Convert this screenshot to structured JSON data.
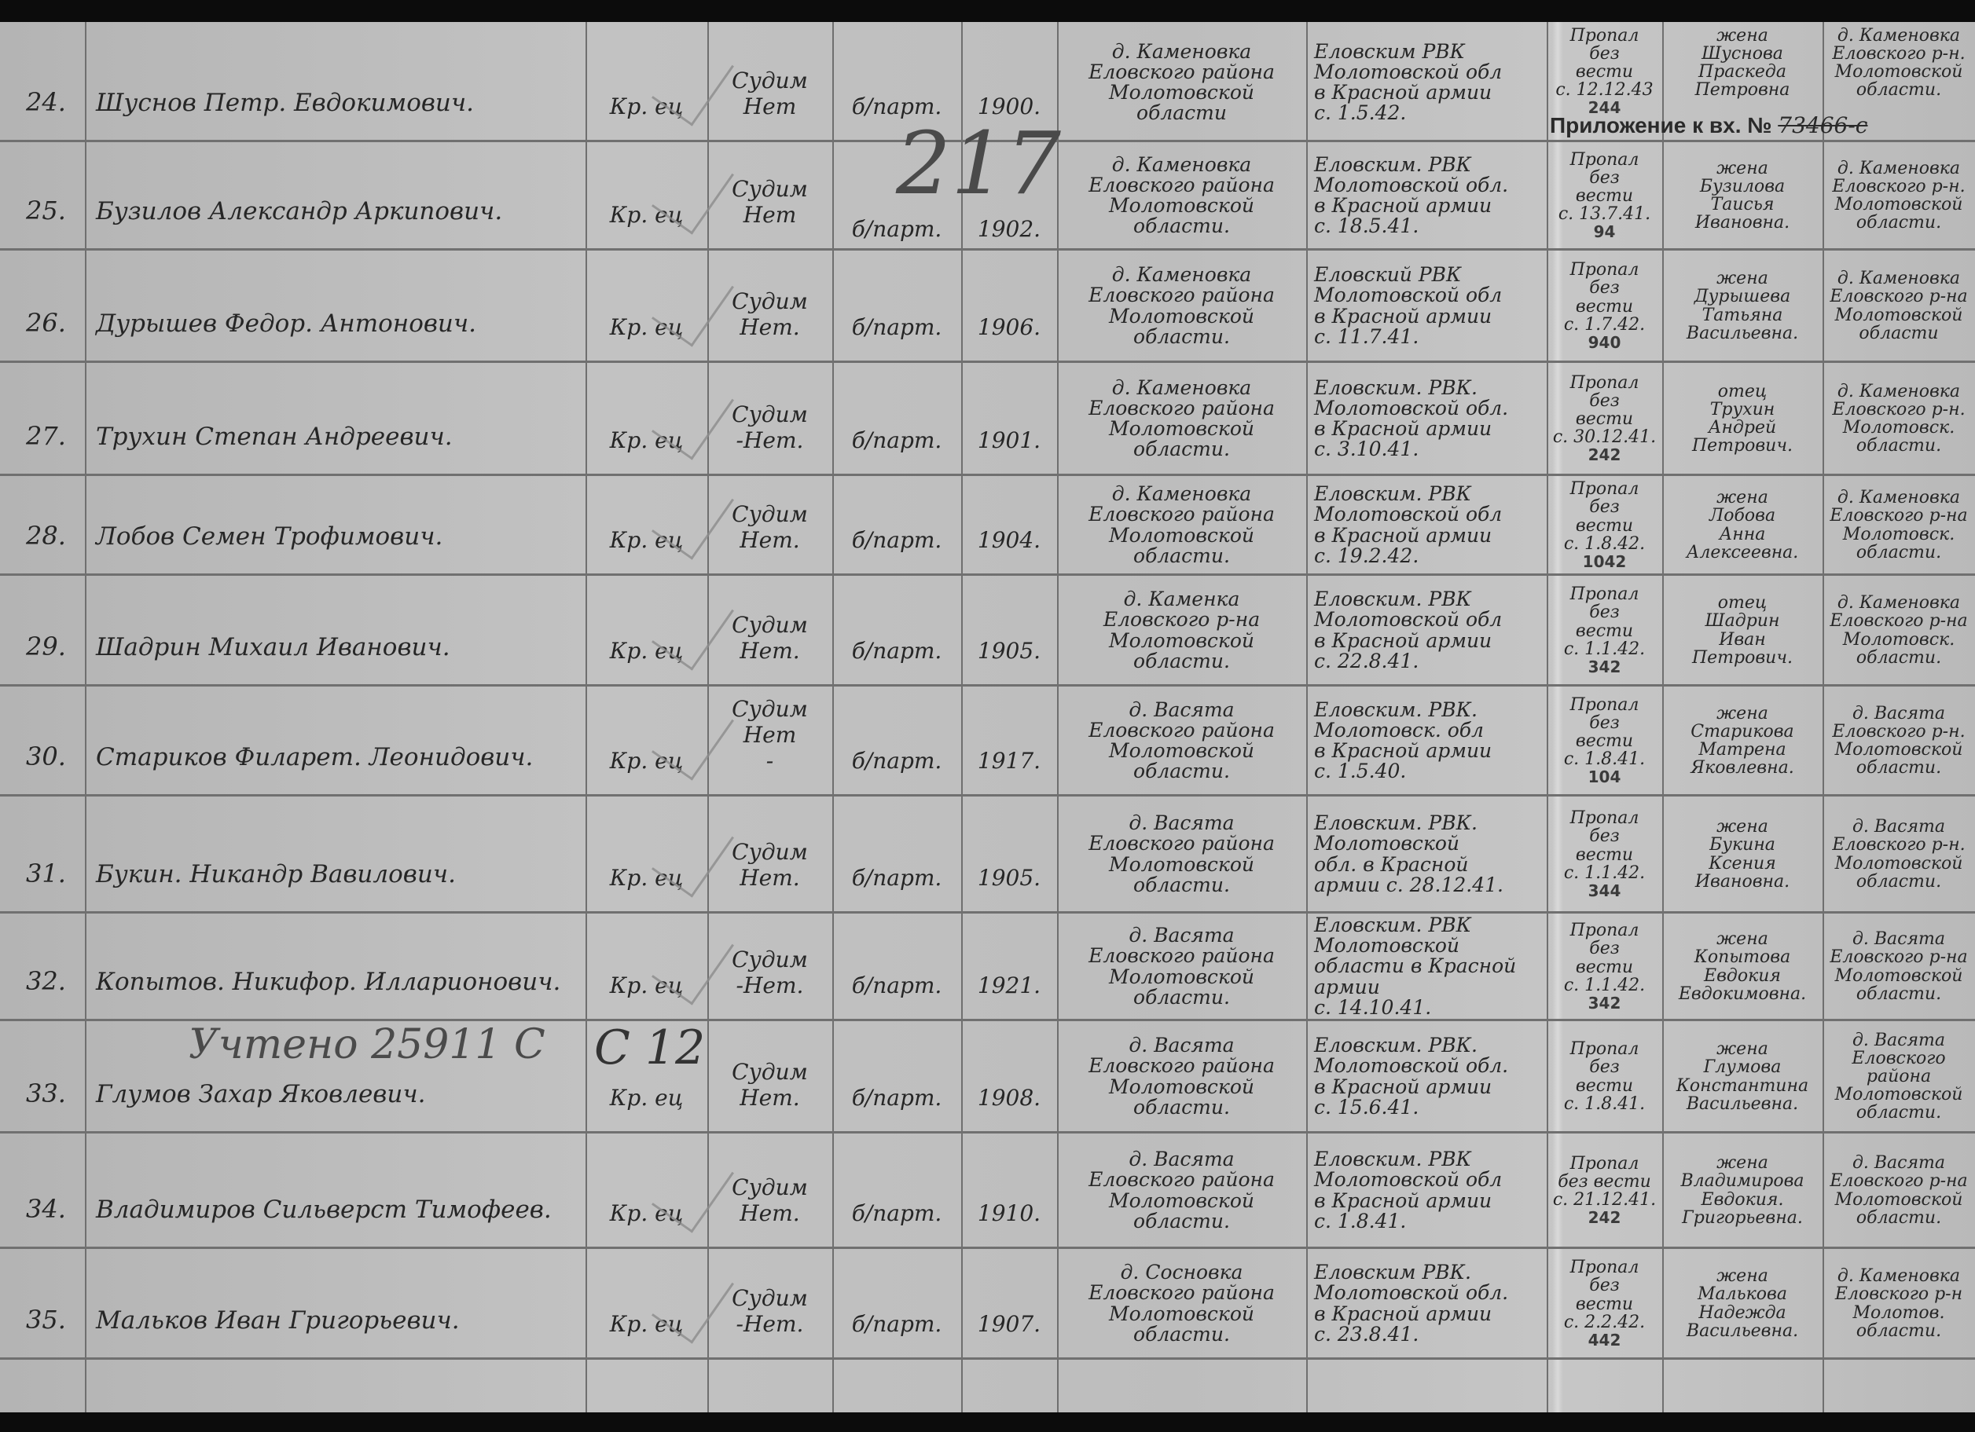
{
  "stamp": {
    "text": "Приложение к вх. №",
    "number": "73466-с"
  },
  "annotations": {
    "pencil_number": "217",
    "accounted_note": "Учтено 25911 С",
    "circled_mark": "С 12"
  },
  "rows": [
    {
      "num": "24.",
      "name": "Шуснов Петр. Евдокимович.",
      "social": "Кр. ец",
      "convicted": "Судим\nНет",
      "party": "б/парт.",
      "year": "1900.",
      "birthplace": "д. Каменовка\nЕловского района\nМолотовской\nобласти",
      "drafted": "Еловским РВК\nМолотовской обл\nв Красной армии\nс. 1.5.42.",
      "fate": "Пропал\nбез\nвести\nс. 12.12.43",
      "code": "244",
      "relative": "жена\nШуснова\nПраскеда\nПетровна",
      "relative_address": "д. Каменовка\nЕловского р-н.\nМолотовской\nобласти."
    },
    {
      "num": "25.",
      "name": "Бузилов Александр Аркипович.",
      "social": "Кр. ец",
      "convicted": "Судим\nНет",
      "party": "б/парт.",
      "year": "1902.",
      "birthplace": "д. Каменовка\nЕловского района\nМолотовской\nобласти.",
      "drafted": "Еловским. РВК\nМолотовской обл.\nв Красной армии\nс. 18.5.41.",
      "fate": "Пропал\nбез\nвести\nс. 13.7.41.",
      "code": "94",
      "relative": "жена\nБузилова\nТаисья\nИвановна.",
      "relative_address": "д. Каменовка\nЕловского р-н.\nМолотовской\nобласти."
    },
    {
      "num": "26.",
      "name": "Дурышев Федор. Антонович.",
      "social": "Кр. ец",
      "convicted": "Судим\nНет.",
      "party": "б/парт.",
      "year": "1906.",
      "birthplace": "д. Каменовка\nЕловского района\nМолотовской\nобласти.",
      "drafted": "Еловский РВК\nМолотовской обл\nв Красной армии\nс. 11.7.41.",
      "fate": "Пропал\nбез\nвести\nс. 1.7.42.",
      "code": "940",
      "relative": "жена\nДурышева\nТатьяна\nВасильевна.",
      "relative_address": "д. Каменовка\nЕловского р-на\nМолотовской\nобласти"
    },
    {
      "num": "27.",
      "name": "Трухин Степан Андреевич.",
      "social": "Кр. ец",
      "convicted": "Судим\n-Нет.",
      "party": "б/парт.",
      "year": "1901.",
      "birthplace": "д. Каменовка\nЕловского района\nМолотовской\nобласти.",
      "drafted": "Еловским. РВК.\nМолотовской обл.\nв Красной армии\nс. 3.10.41.",
      "fate": "Пропал\nбез\nвести\nс. 30.12.41.",
      "code": "242",
      "relative": "отец\nТрухин\nАндрей\nПетрович.",
      "relative_address": "д. Каменовка\nЕловского р-н.\nМолотовск.\nобласти."
    },
    {
      "num": "28.",
      "name": "Лобов Семен Трофимович.",
      "social": "Кр. ец",
      "convicted": "Судим\nНет.",
      "party": "б/парт.",
      "year": "1904.",
      "birthplace": "д. Каменовка\nЕловского района\nМолотовской\nобласти.",
      "drafted": "Еловским. РВК\nМолотовской обл\nв Красной армии\nс. 19.2.42.",
      "fate": "Пропал\nбез\nвести\nс. 1.8.42.",
      "code": "1042",
      "relative": "жена\nЛобова\nАнна\nАлексеевна.",
      "relative_address": "д. Каменовка\nЕловского р-на\nМолотовск.\nобласти."
    },
    {
      "num": "29.",
      "name": "Шадрин Михаил Иванович.",
      "social": "Кр. ец",
      "convicted": "Судим\nНет.",
      "party": "б/парт.",
      "year": "1905.",
      "birthplace": "д. Каменка\nЕловского р-на\nМолотовской\nобласти.",
      "drafted": "Еловским. РВК\nМолотовской обл\nв Красной армии\nс. 22.8.41.",
      "fate": "Пропал\nбез\nвести\nс. 1.1.42.",
      "code": "342",
      "relative": "отец\nШадрин\nИван\nПетрович.",
      "relative_address": "д. Каменовка\nЕловского р-на\nМолотовск.\nобласти."
    },
    {
      "num": "30.",
      "name": "Стариков Филарет. Леонидович.",
      "social": "Кр. ец",
      "convicted": "Судим\nНет\n-",
      "party": "б/парт.",
      "year": "1917.",
      "birthplace": "д. Васята\nЕловского района\nМолотовской\nобласти.",
      "drafted": "Еловским. РВК.\nМолотовск. обл\nв Красной армии\nс. 1.5.40.",
      "fate": "Пропал\nбез\nвести\nс. 1.8.41.",
      "code": "104",
      "relative": "жена\nСтарикова\nМатрена\nЯковлевна.",
      "relative_address": "д. Васята\nЕловского р-н.\nМолотовской\nобласти."
    },
    {
      "num": "31.",
      "name": "Букин. Никандр Вавилович.",
      "social": "Кр. ец",
      "convicted": "Судим\nНет.",
      "party": "б/парт.",
      "year": "1905.",
      "birthplace": "д. Васята\nЕловского района\nМолотовской\nобласти.",
      "drafted": "Еловским. РВК.\nМолотовской\nобл. в Красной\nармии с. 28.12.41.",
      "fate": "Пропал\nбез\nвести\nс. 1.1.42.",
      "code": "344",
      "relative": "жена\nБукина\nКсения\nИвановна.",
      "relative_address": "д. Васята\nЕловского р-н.\nМолотовской\nобласти."
    },
    {
      "num": "32.",
      "name": "Копытов. Никифор. Илларионович.",
      "social": "Кр. ец",
      "convicted": "Судим\n-Нет.",
      "party": "б/парт.",
      "year": "1921.",
      "birthplace": "д. Васята\nЕловского района\nМолотовской\nобласти.",
      "drafted": "Еловским. РВК\nМолотовской\nобласти в Красной\nармии\nс. 14.10.41.",
      "fate": "Пропал\nбез\nвести\nс. 1.1.42.",
      "code": "342",
      "relative": "жена\nКопытова\nЕвдокия\nЕвдокимовна.",
      "relative_address": "д. Васята\nЕловского р-на\nМолотовской\nобласти."
    },
    {
      "num": "33.",
      "name": "Глумов Захар Яковлевич.",
      "social": "Кр. ец",
      "convicted": "Судим\nНет.",
      "party": "б/парт.",
      "year": "1908.",
      "birthplace": "д. Васята\nЕловского района\nМолотовской\nобласти.",
      "drafted": "Еловским. РВК.\nМолотовской обл.\nв Красной армии\nс. 15.6.41.",
      "fate": "Пропал\nбез\nвести\nс. 1.8.41.",
      "code": "",
      "relative": "жена\nГлумова\nКонстантина\nВасильевна.",
      "relative_address": "д. Васята\nЕловского\nрайона\nМолотовской\nобласти."
    },
    {
      "num": "34.",
      "name": "Владимиров Сильверст Тимофеев.",
      "social": "Кр. ец",
      "convicted": "Судим\nНет.",
      "party": "б/парт.",
      "year": "1910.",
      "birthplace": "д. Васята\nЕловского района\nМолотовской\nобласти.",
      "drafted": "Еловским. РВК\nМолотовской обл\nв Красной армии\nс. 1.8.41.",
      "fate": "Пропал\nбез вести\nс. 21.12.41.",
      "code": "242",
      "relative": "жена\nВладимирова\nЕвдокия.\nГригорьевна.",
      "relative_address": "д. Васята\nЕловского р-на\nМолотовской\nобласти."
    },
    {
      "num": "35.",
      "name": "Мальков Иван Григорьевич.",
      "social": "Кр. ец",
      "convicted": "Судим\n-Нет.",
      "party": "б/парт.",
      "year": "1907.",
      "birthplace": "д. Сосновка\nЕловского района\nМолотовской\nобласти.",
      "drafted": "Еловским РВК.\nМолотовской обл.\nв Красной армии\nс. 23.8.41.",
      "fate": "Пропал\nбез\nвести\nс. 2.2.42.",
      "code": "442",
      "relative": "жена\nМалькова\nНадежда\nВасильевна.",
      "relative_address": "д. Каменовка\nЕловского р-н\nМолотов.\nобласти."
    }
  ]
}
